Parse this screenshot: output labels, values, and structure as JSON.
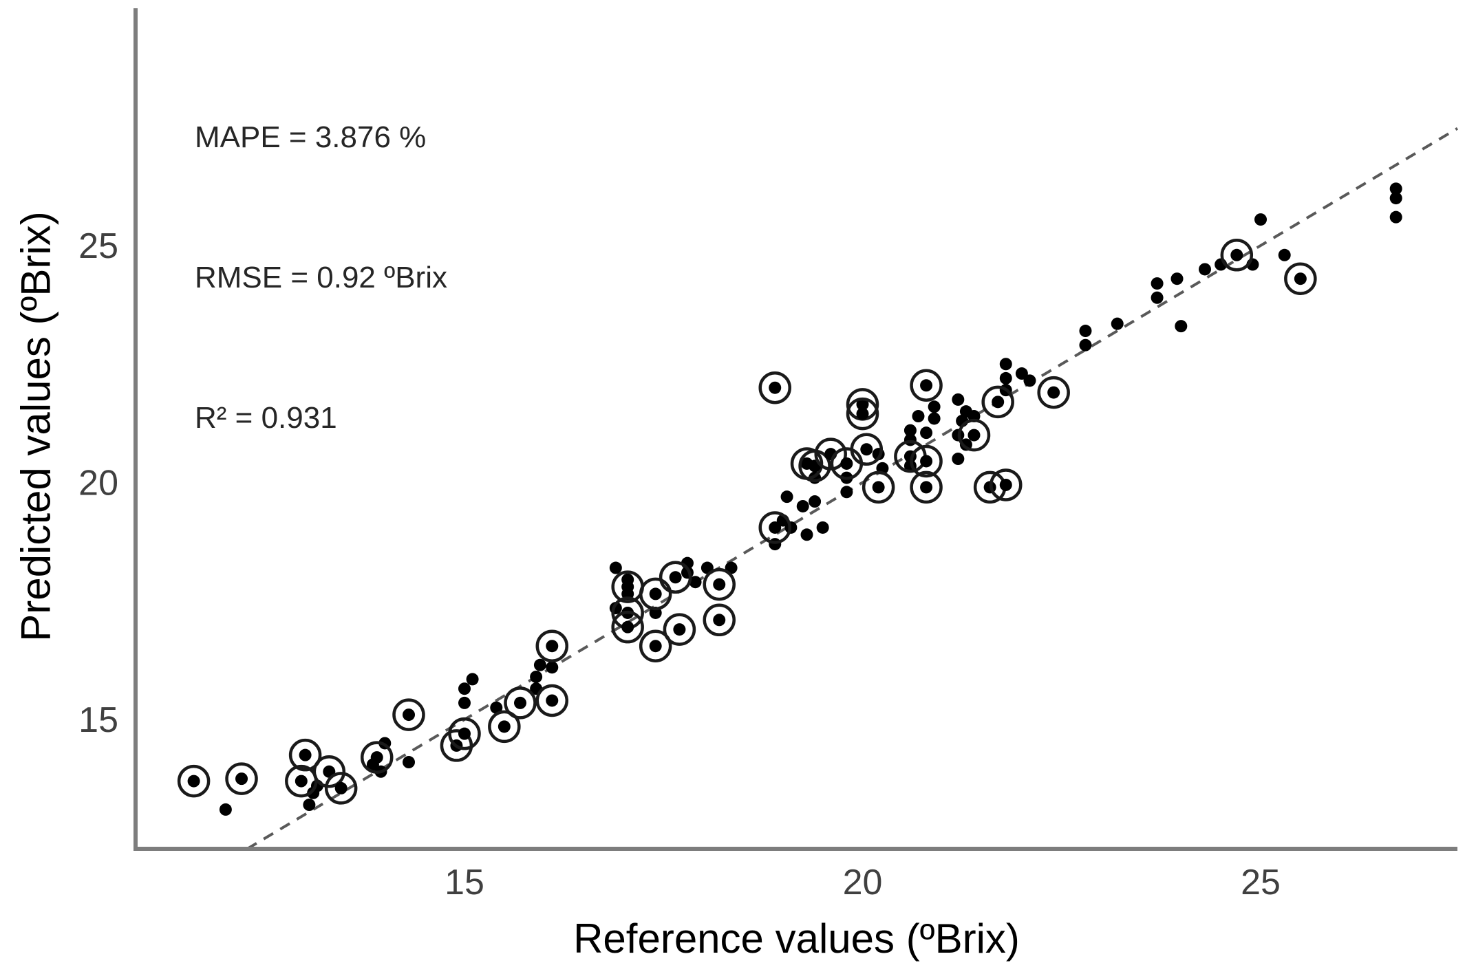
{
  "chart_data": {
    "type": "scatter",
    "title": "",
    "xlabel": "Reference values (ºBrix)",
    "ylabel": "Predicted values (ºBrix)",
    "annotations": {
      "mape": "MAPE = 3.876 %",
      "rmse": "RMSE = 0.92 ºBrix",
      "r2": "R² = 0.931"
    },
    "x_ticks": [
      15,
      20,
      25
    ],
    "y_ticks": [
      15,
      20,
      25
    ],
    "xlim": [
      10.9,
      27.5
    ],
    "ylim": [
      12.27,
      29.9
    ],
    "grid": false,
    "legend": "none",
    "identity_line": {
      "style": "dashed",
      "slope": 1,
      "intercept": 0
    },
    "series": [
      {
        "name": "samples",
        "marker": "filled-dot",
        "points": [
          [
            12.0,
            13.1
          ],
          [
            13.1,
            13.45
          ],
          [
            13.05,
            13.2
          ],
          [
            13.15,
            13.6
          ],
          [
            14.0,
            14.5
          ],
          [
            13.85,
            14.05
          ],
          [
            13.95,
            13.9
          ],
          [
            14.3,
            14.1
          ],
          [
            15.0,
            15.35
          ],
          [
            15.0,
            15.65
          ],
          [
            15.1,
            15.85
          ],
          [
            15.4,
            15.25
          ],
          [
            15.9,
            15.65
          ],
          [
            15.9,
            15.9
          ],
          [
            15.95,
            16.15
          ],
          [
            16.1,
            16.1
          ],
          [
            16.9,
            18.2
          ],
          [
            16.9,
            17.35
          ],
          [
            17.05,
            17.95
          ],
          [
            17.05,
            17.65
          ],
          [
            17.4,
            17.25
          ],
          [
            17.8,
            18.3
          ],
          [
            17.8,
            18.1
          ],
          [
            17.9,
            17.9
          ],
          [
            18.05,
            18.2
          ],
          [
            18.35,
            18.2
          ],
          [
            18.9,
            18.7
          ],
          [
            19.1,
            19.05
          ],
          [
            19.0,
            19.2
          ],
          [
            19.05,
            19.7
          ],
          [
            19.25,
            19.5
          ],
          [
            19.3,
            18.9
          ],
          [
            19.4,
            19.6
          ],
          [
            19.4,
            20.1
          ],
          [
            19.8,
            20.1
          ],
          [
            19.8,
            19.8
          ],
          [
            19.5,
            19.05
          ],
          [
            20.2,
            20.6
          ],
          [
            20.25,
            20.3
          ],
          [
            20.6,
            20.35
          ],
          [
            20.6,
            20.9
          ],
          [
            20.6,
            21.1
          ],
          [
            20.8,
            21.05
          ],
          [
            20.9,
            21.35
          ],
          [
            20.9,
            21.6
          ],
          [
            20.7,
            21.4
          ],
          [
            21.2,
            21.75
          ],
          [
            21.3,
            21.5
          ],
          [
            21.4,
            21.4
          ],
          [
            21.25,
            21.3
          ],
          [
            21.2,
            21.0
          ],
          [
            21.2,
            20.5
          ],
          [
            21.3,
            20.8
          ],
          [
            21.8,
            22.5
          ],
          [
            21.8,
            22.2
          ],
          [
            21.8,
            21.95
          ],
          [
            22.0,
            22.3
          ],
          [
            22.1,
            22.15
          ],
          [
            22.8,
            23.2
          ],
          [
            22.8,
            22.9
          ],
          [
            23.2,
            23.35
          ],
          [
            23.7,
            24.2
          ],
          [
            23.7,
            23.9
          ],
          [
            23.95,
            24.3
          ],
          [
            24.0,
            23.3
          ],
          [
            24.3,
            24.5
          ],
          [
            24.5,
            24.6
          ],
          [
            24.9,
            24.6
          ],
          [
            25.0,
            25.55
          ],
          [
            25.3,
            24.8
          ],
          [
            26.7,
            26.2
          ],
          [
            26.7,
            26.0
          ],
          [
            26.7,
            25.6
          ]
        ]
      },
      {
        "name": "circled samples",
        "marker": "dot-in-open-circle",
        "points": [
          [
            11.6,
            13.7
          ],
          [
            12.2,
            13.75
          ],
          [
            13.0,
            14.25
          ],
          [
            12.95,
            13.7
          ],
          [
            13.3,
            13.9
          ],
          [
            13.45,
            13.55
          ],
          [
            13.9,
            14.2
          ],
          [
            14.3,
            15.1
          ],
          [
            14.9,
            14.45
          ],
          [
            15.0,
            14.7
          ],
          [
            15.5,
            14.85
          ],
          [
            15.7,
            15.35
          ],
          [
            16.1,
            15.4
          ],
          [
            16.1,
            16.55
          ],
          [
            17.05,
            17.8
          ],
          [
            17.05,
            17.25
          ],
          [
            17.05,
            16.95
          ],
          [
            17.4,
            17.65
          ],
          [
            17.4,
            16.55
          ],
          [
            17.65,
            18.0
          ],
          [
            17.7,
            16.9
          ],
          [
            18.2,
            17.85
          ],
          [
            18.2,
            17.1
          ],
          [
            18.9,
            22.0
          ],
          [
            18.9,
            19.05
          ],
          [
            19.3,
            20.4
          ],
          [
            19.4,
            20.35
          ],
          [
            19.6,
            20.6
          ],
          [
            19.8,
            20.4
          ],
          [
            20.0,
            21.65
          ],
          [
            20.0,
            21.45
          ],
          [
            20.05,
            20.7
          ],
          [
            20.2,
            19.9
          ],
          [
            20.8,
            19.9
          ],
          [
            21.6,
            19.9
          ],
          [
            21.8,
            19.95
          ],
          [
            20.6,
            20.55
          ],
          [
            20.8,
            20.45
          ],
          [
            20.8,
            22.05
          ],
          [
            21.4,
            21.0
          ],
          [
            21.7,
            21.7
          ],
          [
            22.4,
            21.9
          ],
          [
            24.7,
            24.8
          ],
          [
            25.5,
            24.3
          ]
        ]
      }
    ],
    "colors": {
      "point": "#000000",
      "ring": "#1a1a1a",
      "axis_line": "#7d7d7d",
      "tick_label": "#404040",
      "identity_line": "#595959",
      "annotation_text": "#262626",
      "background": "#ffffff"
    }
  }
}
